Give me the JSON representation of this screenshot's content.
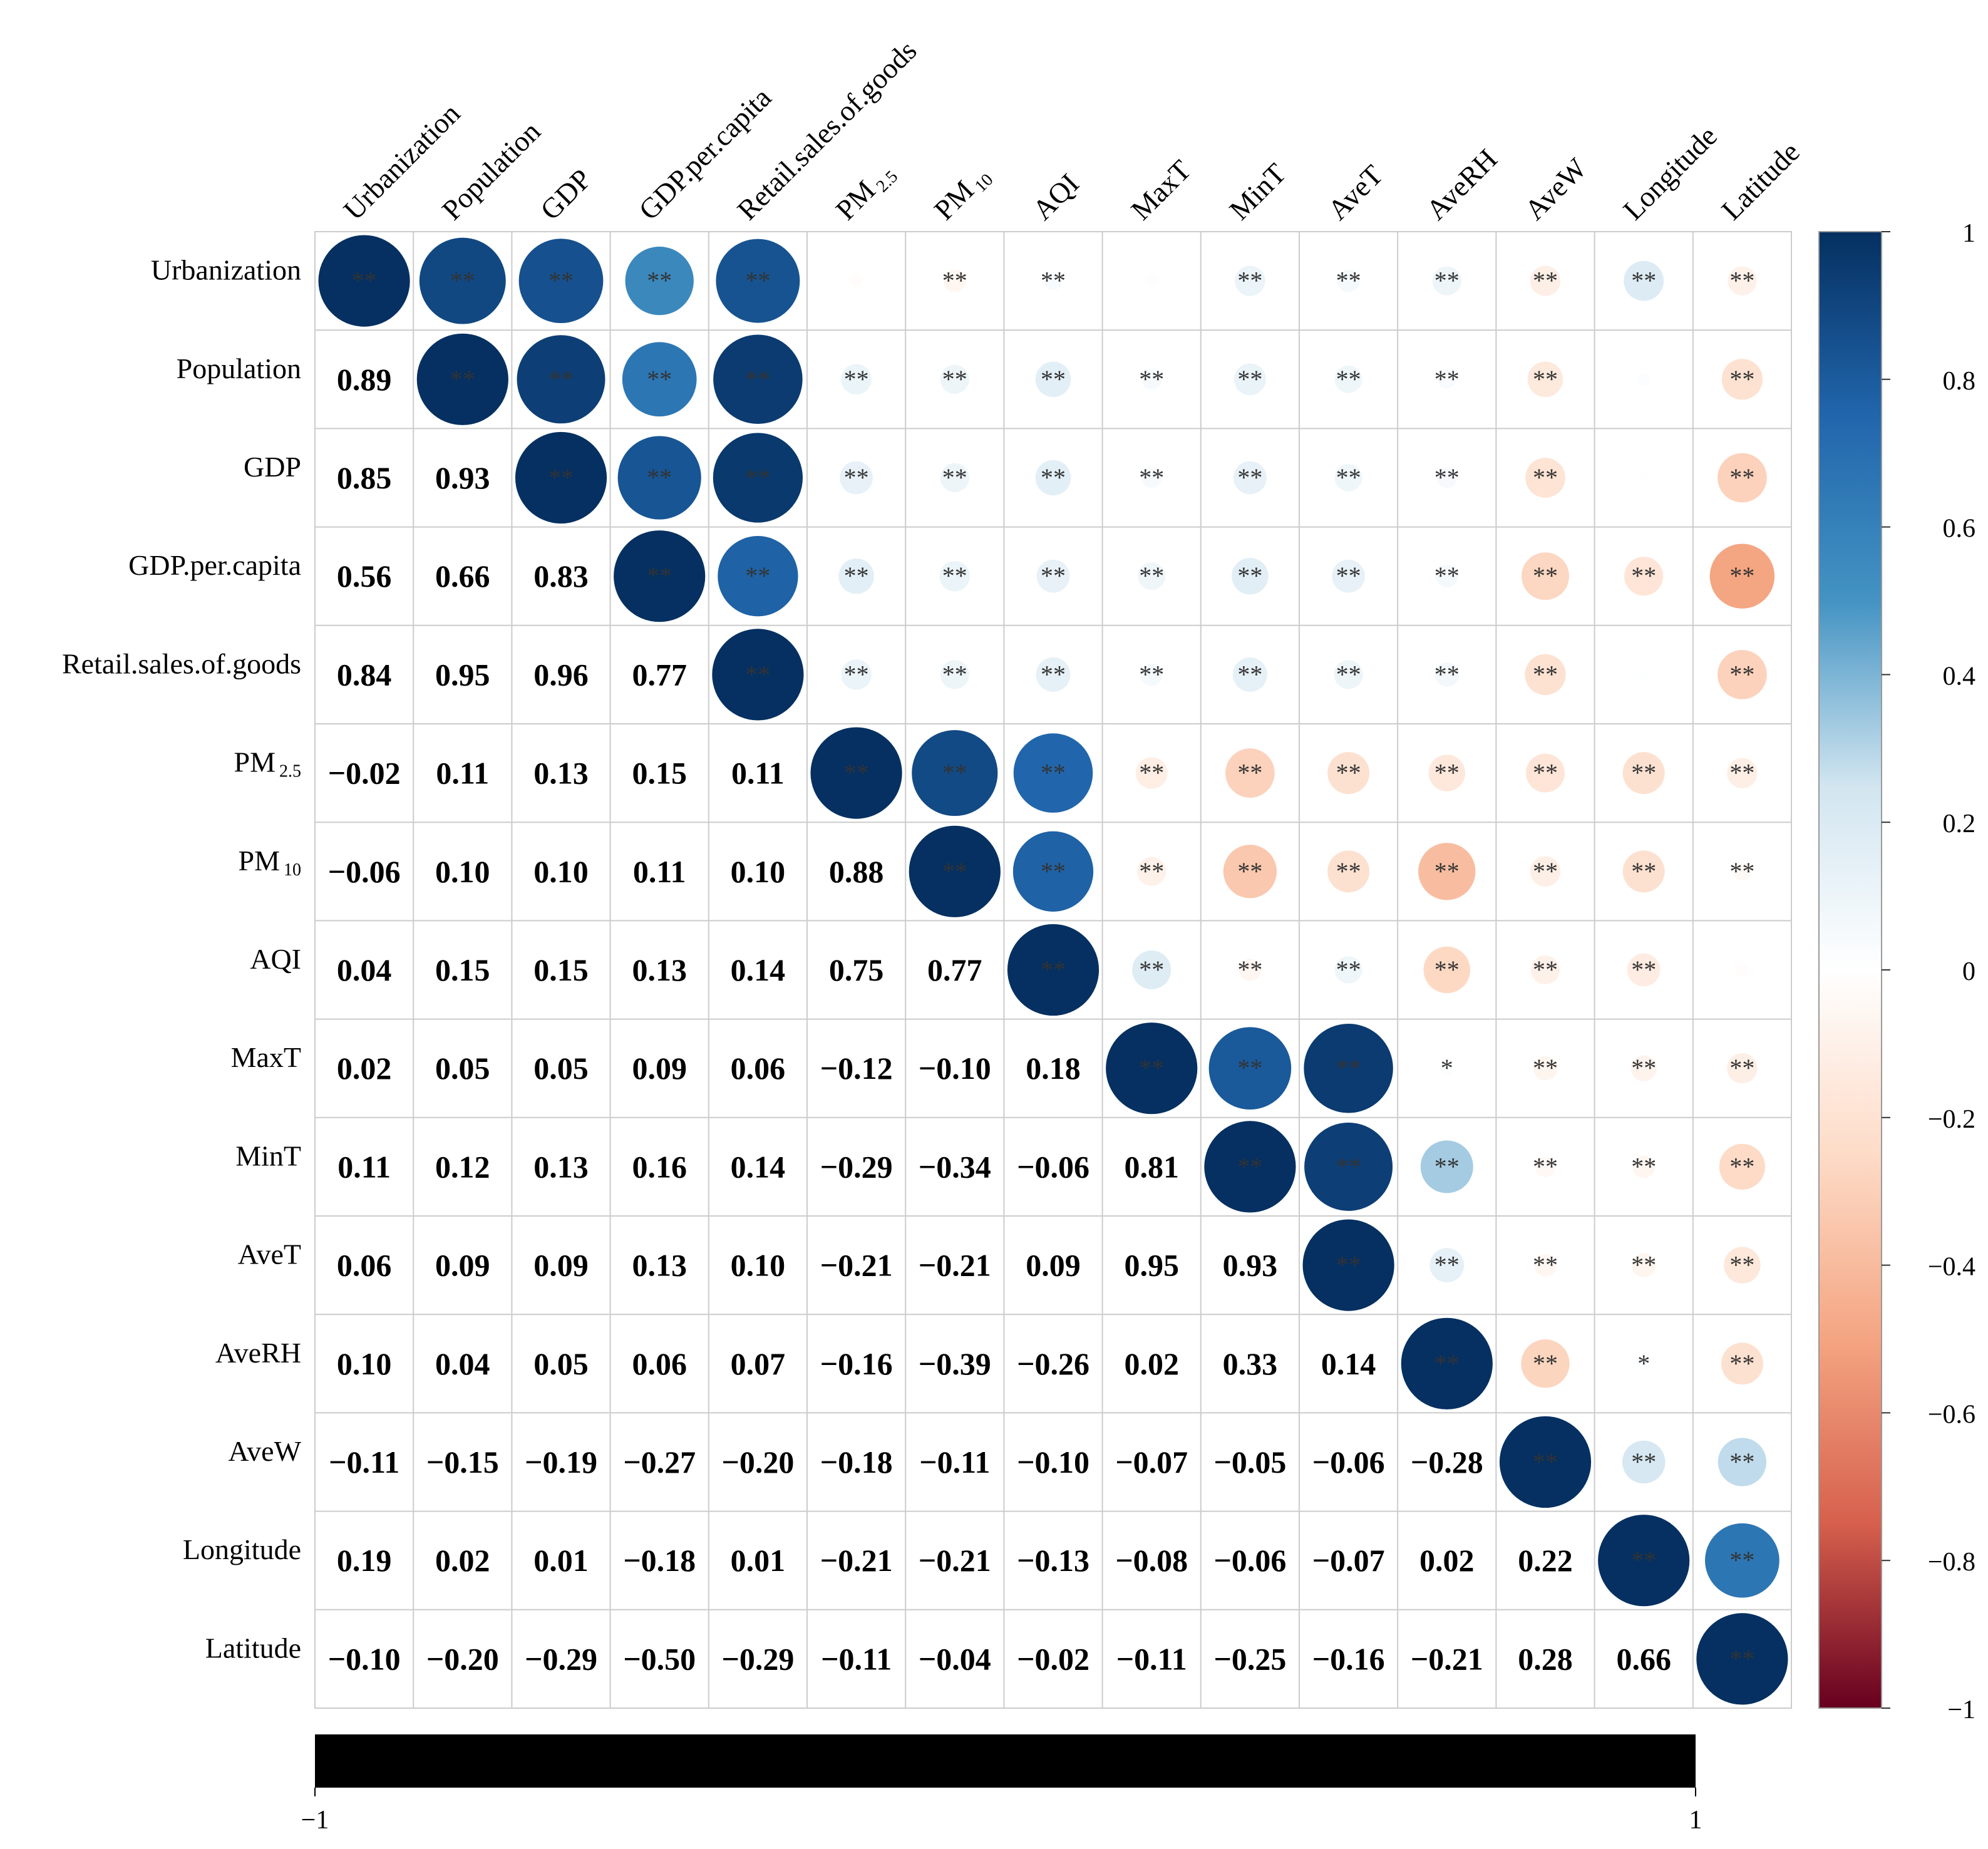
{
  "chart_data": {
    "type": "heatmap",
    "subtype": "correlation-matrix",
    "variables": [
      "Urbanization",
      "Population",
      "GDP",
      "GDP.per.capita",
      "Retail.sales.of.goods",
      "PM2.5",
      "PM10",
      "AQI",
      "MaxT",
      "MinT",
      "AveT",
      "AveRH",
      "AveW",
      "Longitude",
      "Latitude"
    ],
    "row_labels": [
      {
        "main": "Urbanization",
        "sub": ""
      },
      {
        "main": "Population",
        "sub": ""
      },
      {
        "main": "GDP",
        "sub": ""
      },
      {
        "main": "GDP.per.capita",
        "sub": ""
      },
      {
        "main": "Retail.sales.of.goods",
        "sub": ""
      },
      {
        "main": "PM",
        "sub": "2.5"
      },
      {
        "main": "PM",
        "sub": "10"
      },
      {
        "main": "AQI",
        "sub": ""
      },
      {
        "main": "MaxT",
        "sub": ""
      },
      {
        "main": "MinT",
        "sub": ""
      },
      {
        "main": "AveT",
        "sub": ""
      },
      {
        "main": "AveRH",
        "sub": ""
      },
      {
        "main": "AveW",
        "sub": ""
      },
      {
        "main": "Longitude",
        "sub": ""
      },
      {
        "main": "Latitude",
        "sub": ""
      }
    ],
    "lower_labels": [
      [],
      [
        "0.89"
      ],
      [
        "0.85",
        "0.93"
      ],
      [
        "0.56",
        "0.66",
        "0.83"
      ],
      [
        "0.84",
        "0.95",
        "0.96",
        "0.77"
      ],
      [
        "−0.02",
        "0.11",
        "0.13",
        "0.15",
        "0.11"
      ],
      [
        "−0.06",
        "0.10",
        "0.10",
        "0.11",
        "0.10",
        "0.88"
      ],
      [
        "0.04",
        "0.15",
        "0.15",
        "0.13",
        "0.14",
        "0.75",
        "0.77"
      ],
      [
        "0.02",
        "0.05",
        "0.05",
        "0.09",
        "0.06",
        "−0.12",
        "−0.10",
        "0.18"
      ],
      [
        "0.11",
        "0.12",
        "0.13",
        "0.16",
        "0.14",
        "−0.29",
        "−0.34",
        "−0.06",
        "0.81"
      ],
      [
        "0.06",
        "0.09",
        "0.09",
        "0.13",
        "0.10",
        "−0.21",
        "−0.21",
        "0.09",
        "0.95",
        "0.93"
      ],
      [
        "0.10",
        "0.04",
        "0.05",
        "0.06",
        "0.07",
        "−0.16",
        "−0.39",
        "−0.26",
        "0.02",
        "0.33",
        "0.14"
      ],
      [
        "−0.11",
        "−0.15",
        "−0.19",
        "−0.27",
        "−0.20",
        "−0.18",
        "−0.11",
        "−0.10",
        "−0.07",
        "−0.05",
        "−0.06",
        "−0.28"
      ],
      [
        "0.19",
        "0.02",
        "0.01",
        "−0.18",
        "0.01",
        "−0.21",
        "−0.21",
        "−0.13",
        "−0.08",
        "−0.06",
        "−0.07",
        "0.02",
        "0.22"
      ],
      [
        "−0.10",
        "−0.20",
        "−0.29",
        "−0.50",
        "−0.29",
        "−0.11",
        "−0.04",
        "−0.02",
        "−0.11",
        "−0.25",
        "−0.16",
        "−0.21",
        "0.28",
        "0.66"
      ]
    ],
    "diagonal_value": 1,
    "significance": [
      [
        "**",
        "**",
        "**",
        "**",
        "**",
        "",
        "**",
        "**",
        "",
        "**",
        "**",
        "**",
        "**",
        "**",
        "**"
      ],
      [
        "",
        "**",
        "**",
        "**",
        "**",
        "**",
        "**",
        "**",
        "**",
        "**",
        "**",
        "**",
        "**",
        "",
        "**"
      ],
      [
        "",
        "",
        "**",
        "**",
        "**",
        "**",
        "**",
        "**",
        "**",
        "**",
        "**",
        "**",
        "**",
        "",
        "**"
      ],
      [
        "",
        "",
        "",
        "**",
        "**",
        "**",
        "**",
        "**",
        "**",
        "**",
        "**",
        "**",
        "**",
        "**",
        "**"
      ],
      [
        "",
        "",
        "",
        "",
        "**",
        "**",
        "**",
        "**",
        "**",
        "**",
        "**",
        "**",
        "**",
        "",
        "**"
      ],
      [
        "",
        "",
        "",
        "",
        "",
        "**",
        "**",
        "**",
        "**",
        "**",
        "**",
        "**",
        "**",
        "**",
        "**"
      ],
      [
        "",
        "",
        "",
        "",
        "",
        "",
        "**",
        "**",
        "**",
        "**",
        "**",
        "**",
        "**",
        "**",
        "**"
      ],
      [
        "",
        "",
        "",
        "",
        "",
        "",
        "",
        "**",
        "**",
        "**",
        "**",
        "**",
        "**",
        "**",
        ""
      ],
      [
        "",
        "",
        "",
        "",
        "",
        "",
        "",
        "",
        "**",
        "**",
        "**",
        "*",
        "**",
        "**",
        "**"
      ],
      [
        "",
        "",
        "",
        "",
        "",
        "",
        "",
        "",
        "",
        "**",
        "**",
        "**",
        "**",
        "**",
        "**"
      ],
      [
        "",
        "",
        "",
        "",
        "",
        "",
        "",
        "",
        "",
        "",
        "**",
        "**",
        "**",
        "**",
        "**"
      ],
      [
        "",
        "",
        "",
        "",
        "",
        "",
        "",
        "",
        "",
        "",
        "",
        "**",
        "**",
        "*",
        "**"
      ],
      [
        "",
        "",
        "",
        "",
        "",
        "",
        "",
        "",
        "",
        "",
        "",
        "",
        "**",
        "**",
        "**"
      ],
      [
        "",
        "",
        "",
        "",
        "",
        "",
        "",
        "",
        "",
        "",
        "",
        "",
        "",
        "**",
        "**"
      ],
      [
        "",
        "",
        "",
        "",
        "",
        "",
        "",
        "",
        "",
        "",
        "",
        "",
        "",
        "",
        "**"
      ]
    ],
    "color_scale": {
      "domain": [
        -1,
        1
      ],
      "ticks": [
        "1",
        "0.8",
        "0.6",
        "0.4",
        "0.2",
        "0",
        "−0.2",
        "−0.4",
        "−0.6",
        "−0.8",
        "−1"
      ],
      "stops": [
        {
          "v": -1.0,
          "color": "#67001F"
        },
        {
          "v": -0.75,
          "color": "#D6604D"
        },
        {
          "v": -0.5,
          "color": "#F4A582"
        },
        {
          "v": -0.25,
          "color": "#FDDBC7"
        },
        {
          "v": 0.0,
          "color": "#FFFFFF"
        },
        {
          "v": 0.25,
          "color": "#D1E5F0"
        },
        {
          "v": 0.5,
          "color": "#4393C3"
        },
        {
          "v": 0.75,
          "color": "#2166AC"
        },
        {
          "v": 1.0,
          "color": "#053061"
        }
      ]
    },
    "bottom_bar": {
      "left_label": "−1",
      "right_label": "1",
      "color": "#000000"
    },
    "grid": true,
    "legend_position": "right"
  }
}
